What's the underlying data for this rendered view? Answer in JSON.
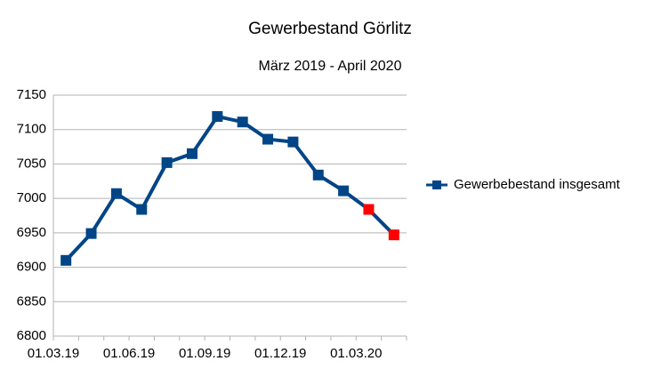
{
  "chart_data": {
    "type": "line",
    "title": "Gewerbestand Görlitz",
    "subtitle": "März 2019 - April 2020",
    "categories": [
      "01.03.19",
      null,
      null,
      "01.06.19",
      null,
      null,
      "01.09.19",
      null,
      null,
      "01.12.19",
      null,
      null,
      "01.03.20",
      null
    ],
    "series": [
      {
        "name": "Gewerbebestand insgesamt",
        "color": "#004586",
        "values": [
          6910,
          6949,
          7007,
          6984,
          7052,
          7065,
          7119,
          7111,
          7086,
          7082,
          7034,
          7011,
          6984,
          6947
        ],
        "marker_colors": [
          "#004586",
          "#004586",
          "#004586",
          "#004586",
          "#004586",
          "#004586",
          "#004586",
          "#004586",
          "#004586",
          "#004586",
          "#004586",
          "#004586",
          "#ff0000",
          "#ff0000"
        ]
      }
    ],
    "ylim": [
      6800,
      7150
    ],
    "yticks": [
      6800,
      6850,
      6900,
      6950,
      7000,
      7050,
      7100,
      7150
    ],
    "grid": true,
    "legend": "right"
  }
}
